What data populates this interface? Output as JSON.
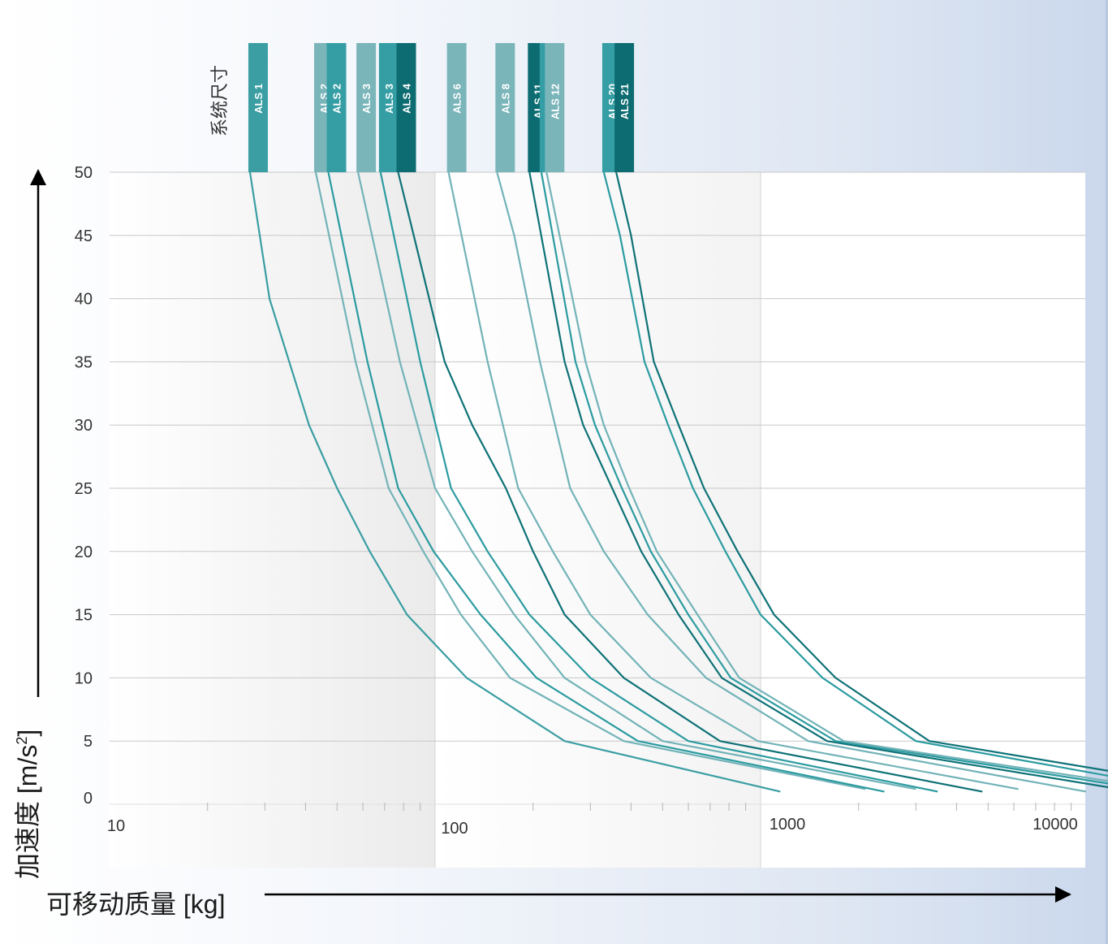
{
  "chart_data": {
    "type": "line",
    "x_scale": "log",
    "xlim": [
      10,
      12000
    ],
    "ylim": [
      0,
      50
    ],
    "xticks": [
      "10",
      "100",
      "1000",
      "10000"
    ],
    "yticks": [
      "0",
      "5",
      "10",
      "15",
      "20",
      "25",
      "30",
      "35",
      "40",
      "45",
      "50"
    ],
    "xlabel": "可移动质量 [kg]",
    "ylabel": "加速度 [m/s²]",
    "ylabel_main": "加速度 [m/s",
    "ylabel_sup": "2",
    "ylabel_end": "]",
    "system_size_label": "系统尺寸",
    "grid": "horizontal",
    "series": [
      {
        "name": "ALS 1",
        "color": "#3a9ea3",
        "tab_color": "#3a9ea3",
        "points": [
          [
            27,
            50
          ],
          [
            31,
            40
          ],
          [
            41,
            30
          ],
          [
            50,
            25
          ],
          [
            63,
            20
          ],
          [
            82,
            15
          ],
          [
            125,
            10
          ],
          [
            250,
            5
          ],
          [
            1150,
            1
          ]
        ]
      },
      {
        "name": "ALS 2",
        "color": "#72b3b8",
        "tab_color": "#7ab5ba",
        "points": [
          [
            43,
            50
          ],
          [
            57,
            35
          ],
          [
            72,
            25
          ],
          [
            92,
            20
          ],
          [
            120,
            15
          ],
          [
            170,
            10
          ],
          [
            380,
            5
          ],
          [
            2100,
            1.2
          ]
        ]
      },
      {
        "name": "ALS 2",
        "color": "#2b9ba0",
        "tab_color": "#349ea4",
        "points": [
          [
            47,
            50
          ],
          [
            62,
            35
          ],
          [
            77,
            25
          ],
          [
            99,
            20
          ],
          [
            138,
            15
          ],
          [
            205,
            10
          ],
          [
            420,
            5
          ],
          [
            2400,
            1
          ]
        ]
      },
      {
        "name": "ALS 3",
        "color": "#72b3b8",
        "tab_color": "#7ab5ba",
        "points": [
          [
            58,
            50
          ],
          [
            78,
            35
          ],
          [
            100,
            25
          ],
          [
            130,
            20
          ],
          [
            175,
            15
          ],
          [
            250,
            10
          ],
          [
            500,
            5
          ],
          [
            3000,
            1.2
          ]
        ]
      },
      {
        "name": "ALS 3",
        "color": "#2b9ba0",
        "tab_color": "#349ea4",
        "points": [
          [
            68,
            50
          ],
          [
            90,
            35
          ],
          [
            112,
            25
          ],
          [
            145,
            20
          ],
          [
            195,
            15
          ],
          [
            300,
            10
          ],
          [
            600,
            5
          ],
          [
            3500,
            1
          ]
        ]
      },
      {
        "name": "ALS 4",
        "color": "#0e7277",
        "tab_color": "#0d6c71",
        "points": [
          [
            77,
            50
          ],
          [
            86,
            45
          ],
          [
            107,
            35
          ],
          [
            130,
            30
          ],
          [
            165,
            25
          ],
          [
            200,
            20
          ],
          [
            250,
            15
          ],
          [
            380,
            10
          ],
          [
            750,
            5
          ],
          [
            4800,
            1
          ]
        ]
      },
      {
        "name": "ALS 6",
        "color": "#72b3b8",
        "tab_color": "#7ab5ba",
        "points": [
          [
            110,
            50
          ],
          [
            145,
            35
          ],
          [
            180,
            25
          ],
          [
            230,
            20
          ],
          [
            300,
            15
          ],
          [
            460,
            10
          ],
          [
            980,
            5
          ],
          [
            6200,
            1.2
          ]
        ]
      },
      {
        "name": "ALS 8",
        "color": "#72b3b8",
        "tab_color": "#7ab5ba",
        "points": [
          [
            155,
            50
          ],
          [
            175,
            45
          ],
          [
            210,
            35
          ],
          [
            260,
            25
          ],
          [
            330,
            20
          ],
          [
            450,
            15
          ],
          [
            680,
            10
          ],
          [
            1400,
            5
          ],
          [
            10000,
            1
          ]
        ]
      },
      {
        "name": "ALS 11",
        "color": "#0e7277",
        "tab_color": "#0d6c71",
        "points": [
          [
            195,
            50
          ],
          [
            250,
            35
          ],
          [
            285,
            30
          ],
          [
            350,
            25
          ],
          [
            430,
            20
          ],
          [
            560,
            15
          ],
          [
            760,
            10
          ],
          [
            1600,
            5
          ],
          [
            12000,
            1.3
          ]
        ]
      },
      {
        "name": "ALS 12",
        "color": "#2b9ba0",
        "tab_color": "#349ea4",
        "points": [
          [
            212,
            50
          ],
          [
            270,
            35
          ],
          [
            310,
            30
          ],
          [
            375,
            25
          ],
          [
            460,
            20
          ],
          [
            600,
            15
          ],
          [
            810,
            10
          ],
          [
            1700,
            5
          ],
          [
            12000,
            1.6
          ]
        ]
      },
      {
        "name": "ALS 12",
        "color": "#72b3b8",
        "tab_color": "#7ab5ba",
        "points": [
          [
            220,
            50
          ],
          [
            290,
            35
          ],
          [
            330,
            30
          ],
          [
            395,
            25
          ],
          [
            480,
            20
          ],
          [
            640,
            15
          ],
          [
            860,
            10
          ],
          [
            1800,
            5
          ],
          [
            12000,
            1.8
          ]
        ]
      },
      {
        "name": "ALS 20",
        "color": "#2b9ba0",
        "tab_color": "#349ea4",
        "points": [
          [
            330,
            50
          ],
          [
            370,
            45
          ],
          [
            440,
            35
          ],
          [
            520,
            30
          ],
          [
            620,
            25
          ],
          [
            780,
            20
          ],
          [
            1000,
            15
          ],
          [
            1550,
            10
          ],
          [
            3000,
            5
          ],
          [
            12000,
            2.2
          ]
        ]
      },
      {
        "name": "ALS 21",
        "color": "#0e7277",
        "tab_color": "#0d6c71",
        "points": [
          [
            360,
            50
          ],
          [
            400,
            45
          ],
          [
            470,
            35
          ],
          [
            560,
            30
          ],
          [
            670,
            25
          ],
          [
            850,
            20
          ],
          [
            1100,
            15
          ],
          [
            1700,
            10
          ],
          [
            3300,
            5
          ],
          [
            12000,
            2.6
          ]
        ]
      }
    ]
  }
}
